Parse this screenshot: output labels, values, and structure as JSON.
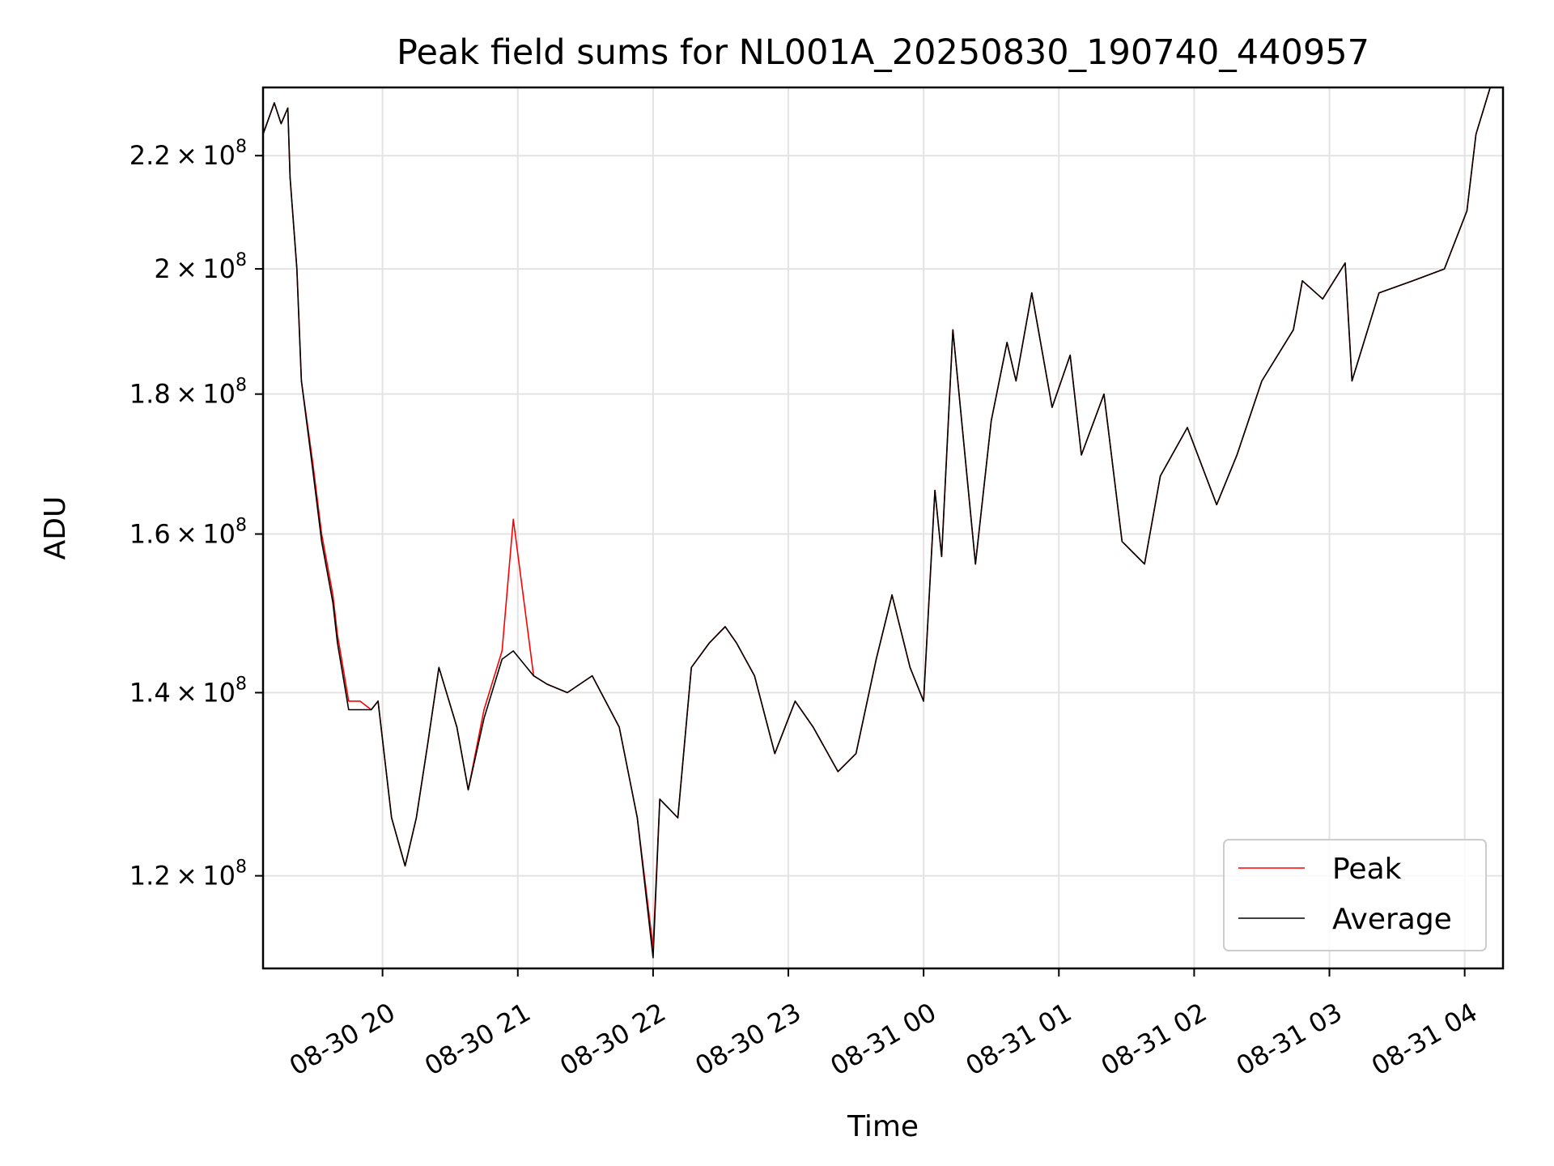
{
  "chart_data": {
    "type": "line",
    "title": "Peak field sums for NL001A_20250830_190740_440957",
    "xlabel": "Time",
    "ylabel": "ADU",
    "y_scale": "log",
    "ylim": [
      111000000,
      233000000
    ],
    "xlim": [
      "2025-08-30 19:07",
      "2025-08-31 04:17"
    ],
    "grid": true,
    "legend_position": "lower-right",
    "x_ticks": [
      {
        "t": "2025-08-30 20:00",
        "label": "08-30 20"
      },
      {
        "t": "2025-08-30 21:00",
        "label": "08-30 21"
      },
      {
        "t": "2025-08-30 22:00",
        "label": "08-30 22"
      },
      {
        "t": "2025-08-30 23:00",
        "label": "08-30 23"
      },
      {
        "t": "2025-08-31 00:00",
        "label": "08-31 00"
      },
      {
        "t": "2025-08-31 01:00",
        "label": "08-31 01"
      },
      {
        "t": "2025-08-31 02:00",
        "label": "08-31 02"
      },
      {
        "t": "2025-08-31 03:00",
        "label": "08-31 03"
      },
      {
        "t": "2025-08-31 04:00",
        "label": "08-31 04"
      }
    ],
    "y_ticks": [
      {
        "value": 120000000,
        "mantissa": "1.2",
        "base": "10",
        "exponent": "8"
      },
      {
        "value": 140000000,
        "mantissa": "1.4",
        "base": "10",
        "exponent": "8"
      },
      {
        "value": 160000000,
        "mantissa": "1.6",
        "base": "10",
        "exponent": "8"
      },
      {
        "value": 180000000,
        "mantissa": "1.8",
        "base": "10",
        "exponent": "8"
      },
      {
        "value": 200000000,
        "mantissa": "2",
        "base": "10",
        "exponent": "8"
      },
      {
        "value": 220000000,
        "mantissa": "2.2",
        "base": "10",
        "exponent": "8"
      }
    ],
    "series": [
      {
        "name": "Peak",
        "color": "#ff0000",
        "x": [
          "2025-08-30 19:07",
          "2025-08-30 19:12",
          "2025-08-30 19:15",
          "2025-08-30 19:18",
          "2025-08-30 19:19",
          "2025-08-30 19:22",
          "2025-08-30 19:24",
          "2025-08-30 19:29",
          "2025-08-30 19:33",
          "2025-08-30 19:38",
          "2025-08-30 19:40",
          "2025-08-30 19:45",
          "2025-08-30 19:50",
          "2025-08-30 19:55",
          "2025-08-30 19:58",
          "2025-08-30 20:04",
          "2025-08-30 20:10",
          "2025-08-30 20:15",
          "2025-08-30 20:20",
          "2025-08-30 20:25",
          "2025-08-30 20:33",
          "2025-08-30 20:38",
          "2025-08-30 20:45",
          "2025-08-30 20:53",
          "2025-08-30 20:58",
          "2025-08-30 21:07",
          "2025-08-30 21:13",
          "2025-08-30 21:22",
          "2025-08-30 21:33",
          "2025-08-30 21:45",
          "2025-08-30 21:53",
          "2025-08-30 22:00",
          "2025-08-30 22:03",
          "2025-08-30 22:11",
          "2025-08-30 22:17",
          "2025-08-30 22:25",
          "2025-08-30 22:32",
          "2025-08-30 22:37",
          "2025-08-30 22:45",
          "2025-08-30 22:54",
          "2025-08-30 23:03",
          "2025-08-30 23:11",
          "2025-08-30 23:22",
          "2025-08-30 23:30",
          "2025-08-30 23:39",
          "2025-08-30 23:46",
          "2025-08-30 23:54",
          "2025-08-31 00:00",
          "2025-08-31 00:05",
          "2025-08-31 00:08",
          "2025-08-31 00:13",
          "2025-08-31 00:23",
          "2025-08-31 00:30",
          "2025-08-31 00:37",
          "2025-08-31 00:41",
          "2025-08-31 00:48",
          "2025-08-31 00:57",
          "2025-08-31 01:05",
          "2025-08-31 01:10",
          "2025-08-31 01:20",
          "2025-08-31 01:28",
          "2025-08-31 01:38",
          "2025-08-31 01:45",
          "2025-08-31 01:57",
          "2025-08-31 02:10",
          "2025-08-31 02:19",
          "2025-08-31 02:30",
          "2025-08-31 02:44",
          "2025-08-31 02:48",
          "2025-08-31 02:57",
          "2025-08-31 03:07",
          "2025-08-31 03:10",
          "2025-08-31 03:22",
          "2025-08-31 03:37",
          "2025-08-31 03:51",
          "2025-08-31 04:01",
          "2025-08-31 04:05",
          "2025-08-31 04:12"
        ],
        "y": [
          224000000,
          230000000,
          226000000,
          229000000,
          216000000,
          200000000,
          182000000,
          170000000,
          160000000,
          152000000,
          147000000,
          139000000,
          139000000,
          138000000,
          139000000,
          126000000,
          121000000,
          126000000,
          134000000,
          143000000,
          136000000,
          129000000,
          138000000,
          145000000,
          162000000,
          142000000,
          141000000,
          140000000,
          142000000,
          136000000,
          126000000,
          113000000,
          128000000,
          126000000,
          143000000,
          146000000,
          148000000,
          146000000,
          142000000,
          133000000,
          139000000,
          136000000,
          131000000,
          133000000,
          144000000,
          152000000,
          143000000,
          139000000,
          166000000,
          157000000,
          190000000,
          156000000,
          176000000,
          188000000,
          182000000,
          196000000,
          178000000,
          186000000,
          171000000,
          180000000,
          159000000,
          156000000,
          168000000,
          175000000,
          164000000,
          171000000,
          182000000,
          190000000,
          198000000,
          195000000,
          201000000,
          182000000,
          196000000,
          198000000,
          200000000,
          210000000,
          224000000,
          234000000
        ]
      },
      {
        "name": "Average",
        "color": "#000000",
        "x": [
          "2025-08-30 19:07",
          "2025-08-30 19:12",
          "2025-08-30 19:15",
          "2025-08-30 19:18",
          "2025-08-30 19:19",
          "2025-08-30 19:22",
          "2025-08-30 19:24",
          "2025-08-30 19:29",
          "2025-08-30 19:33",
          "2025-08-30 19:38",
          "2025-08-30 19:40",
          "2025-08-30 19:45",
          "2025-08-30 19:50",
          "2025-08-30 19:55",
          "2025-08-30 19:58",
          "2025-08-30 20:04",
          "2025-08-30 20:10",
          "2025-08-30 20:15",
          "2025-08-30 20:20",
          "2025-08-30 20:25",
          "2025-08-30 20:33",
          "2025-08-30 20:38",
          "2025-08-30 20:45",
          "2025-08-30 20:53",
          "2025-08-30 20:58",
          "2025-08-30 21:07",
          "2025-08-30 21:13",
          "2025-08-30 21:22",
          "2025-08-30 21:33",
          "2025-08-30 21:45",
          "2025-08-30 21:53",
          "2025-08-30 22:00",
          "2025-08-30 22:03",
          "2025-08-30 22:11",
          "2025-08-30 22:17",
          "2025-08-30 22:25",
          "2025-08-30 22:32",
          "2025-08-30 22:37",
          "2025-08-30 22:45",
          "2025-08-30 22:54",
          "2025-08-30 23:03",
          "2025-08-30 23:11",
          "2025-08-30 23:22",
          "2025-08-30 23:30",
          "2025-08-30 23:39",
          "2025-08-30 23:46",
          "2025-08-30 23:54",
          "2025-08-31 00:00",
          "2025-08-31 00:05",
          "2025-08-31 00:08",
          "2025-08-31 00:13",
          "2025-08-31 00:23",
          "2025-08-31 00:30",
          "2025-08-31 00:37",
          "2025-08-31 00:41",
          "2025-08-31 00:48",
          "2025-08-31 00:57",
          "2025-08-31 01:05",
          "2025-08-31 01:10",
          "2025-08-31 01:20",
          "2025-08-31 01:28",
          "2025-08-31 01:38",
          "2025-08-31 01:45",
          "2025-08-31 01:57",
          "2025-08-31 02:10",
          "2025-08-31 02:19",
          "2025-08-31 02:30",
          "2025-08-31 02:44",
          "2025-08-31 02:48",
          "2025-08-31 02:57",
          "2025-08-31 03:07",
          "2025-08-31 03:10",
          "2025-08-31 03:22",
          "2025-08-31 03:37",
          "2025-08-31 03:51",
          "2025-08-31 04:01",
          "2025-08-31 04:05",
          "2025-08-31 04:12"
        ],
        "y": [
          224000000,
          230000000,
          226000000,
          229000000,
          216000000,
          200000000,
          182000000,
          169000000,
          159000000,
          151000000,
          146000000,
          138000000,
          138000000,
          138000000,
          139000000,
          126000000,
          121000000,
          126000000,
          134000000,
          143000000,
          136000000,
          129000000,
          137000000,
          144000000,
          145000000,
          142000000,
          141000000,
          140000000,
          142000000,
          136000000,
          126000000,
          112000000,
          128000000,
          126000000,
          143000000,
          146000000,
          148000000,
          146000000,
          142000000,
          133000000,
          139000000,
          136000000,
          131000000,
          133000000,
          144000000,
          152000000,
          143000000,
          139000000,
          166000000,
          157000000,
          190000000,
          156000000,
          176000000,
          188000000,
          182000000,
          196000000,
          178000000,
          186000000,
          171000000,
          180000000,
          159000000,
          156000000,
          168000000,
          175000000,
          164000000,
          171000000,
          182000000,
          190000000,
          198000000,
          195000000,
          201000000,
          182000000,
          196000000,
          198000000,
          200000000,
          210000000,
          224000000,
          234000000
        ]
      }
    ]
  }
}
